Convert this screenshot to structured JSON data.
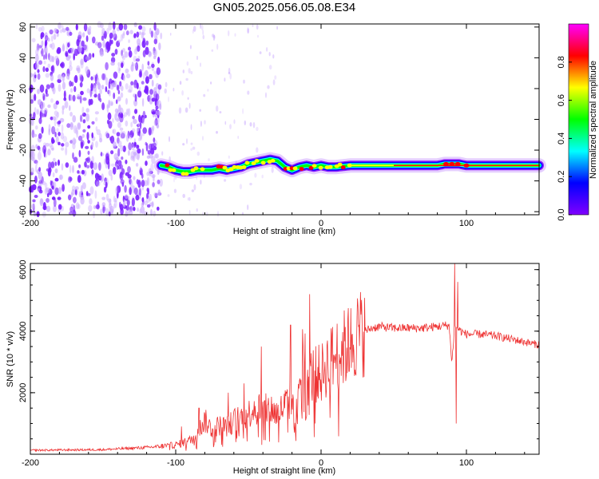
{
  "title": "GN05.2025.056.05.08.E34",
  "colors": {
    "snr_line": "#ee3333",
    "spectro_scatter": "#7a1fff",
    "spectro_faint": "#c9a8ff"
  },
  "chart_data": [
    {
      "type": "heatmap",
      "name": "spectrogram",
      "xlabel": "Height of straight line (km)",
      "ylabel": "Frequency (Hz)",
      "xlim": [
        -200,
        150
      ],
      "ylim": [
        -62,
        62
      ],
      "x_ticks": [
        "-200",
        "-100",
        "0",
        "100"
      ],
      "y_ticks": [
        "60",
        "40",
        "20",
        "0",
        "-20",
        "-40",
        "-60"
      ],
      "colorbar": {
        "label": "Normalized spectral amplitude",
        "range": [
          0,
          1
        ],
        "ticks": [
          "0.0",
          "0.2",
          "0.4",
          "0.6",
          "0.8"
        ],
        "colormap": [
          "#ff00ff",
          "#ff0000",
          "#ffff00",
          "#00ff00",
          "#00ffff",
          "#0000ff",
          "#8000ff"
        ]
      },
      "ridge": {
        "x": [
          -110,
          -105,
          -100,
          -95,
          -90,
          -85,
          -80,
          -75,
          -70,
          -65,
          -60,
          -55,
          -50,
          -45,
          -40,
          -35,
          -30,
          -25,
          -20,
          -15,
          -10,
          -5,
          0,
          5,
          10,
          20,
          30,
          40,
          50,
          60,
          70,
          80,
          85,
          90,
          95,
          100,
          110,
          120,
          130,
          140,
          150
        ],
        "y": [
          -30,
          -31,
          -33,
          -34,
          -34,
          -33,
          -33,
          -33,
          -32,
          -33,
          -32,
          -31,
          -29,
          -28,
          -27,
          -26,
          -27,
          -31,
          -33,
          -31,
          -30,
          -31,
          -30,
          -31,
          -31,
          -30,
          -30,
          -30,
          -30,
          -30,
          -30,
          -30,
          -29,
          -29,
          -29,
          -30,
          -30,
          -30,
          -30,
          -30,
          -30
        ]
      },
      "noise_region_x": [
        -200,
        -110
      ]
    },
    {
      "type": "line",
      "name": "snr",
      "xlabel": "Height of straight line (km)",
      "ylabel": "SNR (10 * v/v)",
      "xlim": [
        -200,
        150
      ],
      "ylim": [
        0,
        6200
      ],
      "x_ticks": [
        "-200",
        "-100",
        "0",
        "100"
      ],
      "y_ticks": [
        "2000",
        "4000",
        "6000"
      ],
      "envelope": {
        "x": [
          -200,
          -150,
          -120,
          -100,
          -90,
          -85,
          -80,
          -75,
          -70,
          -65,
          -60,
          -55,
          -50,
          -45,
          -40,
          -35,
          -30,
          -25,
          -20,
          -17,
          -15,
          -12,
          -10,
          -5,
          0,
          5,
          10,
          15,
          20,
          25,
          30,
          35,
          40,
          50,
          60,
          70,
          80,
          88,
          90,
          92,
          94,
          96,
          100,
          110,
          120,
          130,
          140,
          150
        ],
        "y": [
          130,
          150,
          220,
          300,
          450,
          700,
          1100,
          800,
          950,
          900,
          1100,
          1200,
          1300,
          1600,
          1400,
          1500,
          1300,
          1600,
          1800,
          500,
          2500,
          3600,
          2400,
          2600,
          2600,
          3000,
          3200,
          3400,
          3600,
          3900,
          4000,
          4100,
          4150,
          4100,
          4100,
          4100,
          4150,
          4200,
          3000,
          4200,
          4100,
          4000,
          3900,
          3900,
          3850,
          3750,
          3650,
          3550
        ]
      },
      "spikes": [
        {
          "x": -96,
          "y": 900
        },
        {
          "x": -84,
          "y": 1500
        },
        {
          "x": -64,
          "y": 2000
        },
        {
          "x": -53,
          "y": 2300
        },
        {
          "x": -41,
          "y": 3500
        },
        {
          "x": -21,
          "y": 4200
        },
        {
          "x": -17,
          "y": 1800
        },
        {
          "x": -8,
          "y": 5200
        },
        {
          "x": -4,
          "y": 1000
        },
        {
          "x": 92,
          "y": 6200
        },
        {
          "x": 93,
          "y": 1000
        },
        {
          "x": 94,
          "y": 5600
        }
      ]
    }
  ]
}
